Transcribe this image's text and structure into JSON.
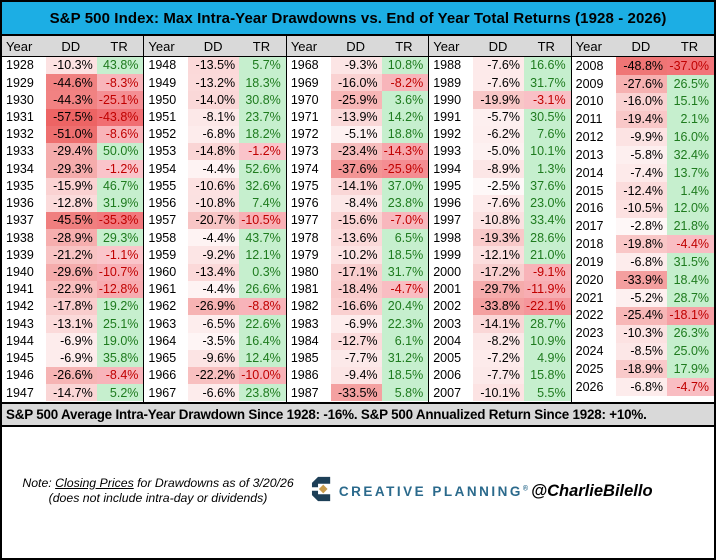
{
  "colors": {
    "title_bg": "#1CAEE4",
    "header_bg": "#D9D9D9",
    "green_bg": "#C6EFCE",
    "green_text": "#1E7B1E",
    "red_text": "#C00000",
    "dd_red_max": [
      237,
      100,
      100
    ],
    "tr_pink_base": [
      250,
      199,
      205
    ],
    "tr_red_max": [
      241,
      110,
      114
    ],
    "logo_navy": "#1D3F57",
    "logo_gold": "#C89B4B",
    "logo_text_color": "#2B6A8C"
  },
  "chart_data": {
    "type": "table",
    "title": "S&P 500 Index: Max Intra-Year Drawdowns vs. End of Year Total Returns (1928 - 2026)",
    "columns": [
      "Year",
      "DD",
      "TR"
    ],
    "rows_per_group": 20,
    "groups": [
      [
        [
          1928,
          -10.3,
          43.8
        ],
        [
          1929,
          -44.6,
          -8.3
        ],
        [
          1930,
          -44.3,
          -25.1
        ],
        [
          1931,
          -57.5,
          -43.8
        ],
        [
          1932,
          -51.0,
          -8.6
        ],
        [
          1933,
          -29.4,
          50.0
        ],
        [
          1934,
          -29.3,
          -1.2
        ],
        [
          1935,
          -15.9,
          46.7
        ],
        [
          1936,
          -12.8,
          31.9
        ],
        [
          1937,
          -45.5,
          -35.3
        ],
        [
          1938,
          -28.9,
          29.3
        ],
        [
          1939,
          -21.2,
          -1.1
        ],
        [
          1940,
          -29.6,
          -10.7
        ],
        [
          1941,
          -22.9,
          -12.8
        ],
        [
          1942,
          -17.8,
          19.2
        ],
        [
          1943,
          -13.1,
          25.1
        ],
        [
          1944,
          -6.9,
          19.0
        ],
        [
          1945,
          -6.9,
          35.8
        ],
        [
          1946,
          -26.6,
          -8.4
        ],
        [
          1947,
          -14.7,
          5.2
        ]
      ],
      [
        [
          1948,
          -13.5,
          5.7
        ],
        [
          1949,
          -13.2,
          18.3
        ],
        [
          1950,
          -14.0,
          30.8
        ],
        [
          1951,
          -8.1,
          23.7
        ],
        [
          1952,
          -6.8,
          18.2
        ],
        [
          1953,
          -14.8,
          -1.2
        ],
        [
          1954,
          -4.4,
          52.6
        ],
        [
          1955,
          -10.6,
          32.6
        ],
        [
          1956,
          -10.8,
          7.4
        ],
        [
          1957,
          -20.7,
          -10.5
        ],
        [
          1958,
          -4.4,
          43.7
        ],
        [
          1959,
          -9.2,
          12.1
        ],
        [
          1960,
          -13.4,
          0.3
        ],
        [
          1961,
          -4.4,
          26.6
        ],
        [
          1962,
          -26.9,
          -8.8
        ],
        [
          1963,
          -6.5,
          22.6
        ],
        [
          1964,
          -3.5,
          16.4
        ],
        [
          1965,
          -9.6,
          12.4
        ],
        [
          1966,
          -22.2,
          -10.0
        ],
        [
          1967,
          -6.6,
          23.8
        ]
      ],
      [
        [
          1968,
          -9.3,
          10.8
        ],
        [
          1969,
          -16.0,
          -8.2
        ],
        [
          1970,
          -25.9,
          3.6
        ],
        [
          1971,
          -13.9,
          14.2
        ],
        [
          1972,
          -5.1,
          18.8
        ],
        [
          1973,
          -23.4,
          -14.3
        ],
        [
          1974,
          -37.6,
          -25.9
        ],
        [
          1975,
          -14.1,
          37.0
        ],
        [
          1976,
          -8.4,
          23.8
        ],
        [
          1977,
          -15.6,
          -7.0
        ],
        [
          1978,
          -13.6,
          6.5
        ],
        [
          1979,
          -10.2,
          18.5
        ],
        [
          1980,
          -17.1,
          31.7
        ],
        [
          1981,
          -18.4,
          -4.7
        ],
        [
          1982,
          -16.6,
          20.4
        ],
        [
          1983,
          -6.9,
          22.3
        ],
        [
          1984,
          -12.7,
          6.1
        ],
        [
          1985,
          -7.7,
          31.2
        ],
        [
          1986,
          -9.4,
          18.5
        ],
        [
          1987,
          -33.5,
          5.8
        ]
      ],
      [
        [
          1988,
          -7.6,
          16.6
        ],
        [
          1989,
          -7.6,
          31.7
        ],
        [
          1990,
          -19.9,
          -3.1
        ],
        [
          1991,
          -5.7,
          30.5
        ],
        [
          1992,
          -6.2,
          7.6
        ],
        [
          1993,
          -5.0,
          10.1
        ],
        [
          1994,
          -8.9,
          1.3
        ],
        [
          1995,
          -2.5,
          37.6
        ],
        [
          1996,
          -7.6,
          23.0
        ],
        [
          1997,
          -10.8,
          33.4
        ],
        [
          1998,
          -19.3,
          28.6
        ],
        [
          1999,
          -12.1,
          21.0
        ],
        [
          2000,
          -17.2,
          -9.1
        ],
        [
          2001,
          -29.7,
          -11.9
        ],
        [
          2002,
          -33.8,
          -22.1
        ],
        [
          2003,
          -14.1,
          28.7
        ],
        [
          2004,
          -8.2,
          10.9
        ],
        [
          2005,
          -7.2,
          4.9
        ],
        [
          2006,
          -7.7,
          15.8
        ],
        [
          2007,
          -10.1,
          5.5
        ]
      ],
      [
        [
          2008,
          -48.8,
          -37.0
        ],
        [
          2009,
          -27.6,
          26.5
        ],
        [
          2010,
          -16.0,
          15.1
        ],
        [
          2011,
          -19.4,
          2.1
        ],
        [
          2012,
          -9.9,
          16.0
        ],
        [
          2013,
          -5.8,
          32.4
        ],
        [
          2014,
          -7.4,
          13.7
        ],
        [
          2015,
          -12.4,
          1.4
        ],
        [
          2016,
          -10.5,
          12.0
        ],
        [
          2017,
          -2.8,
          21.8
        ],
        [
          2018,
          -19.8,
          -4.4
        ],
        [
          2019,
          -6.8,
          31.5
        ],
        [
          2020,
          -33.9,
          18.4
        ],
        [
          2021,
          -5.2,
          28.7
        ],
        [
          2022,
          -25.4,
          -18.1
        ],
        [
          2023,
          -10.3,
          26.3
        ],
        [
          2024,
          -8.5,
          25.0
        ],
        [
          2025,
          -18.9,
          17.9
        ],
        [
          2026,
          -6.8,
          -4.7
        ]
      ]
    ]
  },
  "summary": {
    "text": "S&P 500 Average Intra-Year Drawdown Since 1928: -16%. S&P 500 Annualized Return Since 1928: +10%."
  },
  "footer": {
    "note_prefix": "Note: ",
    "note_underlined": "Closing Prices",
    "note_rest": " for Drawdowns as of 3/20/26 (does not include intra-day or dividends)",
    "logo_text": "CREATIVE PLANNING",
    "logo_mark": "®",
    "handle": "@CharlieBilello"
  }
}
